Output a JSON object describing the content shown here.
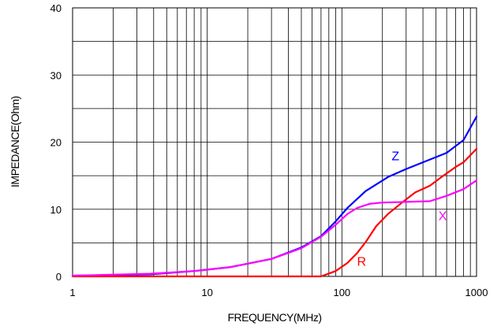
{
  "chart_data": {
    "type": "line",
    "title": "",
    "xlabel": "FREQUENCY(MHz)",
    "ylabel": "IMPEDANCE(Ohm)",
    "xscale": "log",
    "xlim": [
      1,
      1000
    ],
    "ylim": [
      0,
      40
    ],
    "xticks": [
      1,
      10,
      100,
      1000
    ],
    "xtick_labels": [
      "1",
      "10",
      "100",
      "1000"
    ],
    "yticks": [
      0,
      10,
      20,
      30,
      40
    ],
    "ytick_labels": [
      "0",
      "10",
      "20",
      "30",
      "40"
    ],
    "grid": true,
    "legend": "inline labels",
    "series": [
      {
        "name": "Z",
        "color": "#0000ff",
        "label_position": [
          250,
          17.3
        ],
        "x": [
          1,
          3.8,
          8,
          15,
          30,
          50,
          70,
          90,
          110,
          150,
          180,
          220,
          300,
          400,
          600,
          800,
          1000
        ],
        "y": [
          0.1,
          0.3,
          0.8,
          1.4,
          2.6,
          4.3,
          6.0,
          8.2,
          10.2,
          12.7,
          13.7,
          14.8,
          16.0,
          17.0,
          18.4,
          20.3,
          23.8
        ]
      },
      {
        "name": "R",
        "color": "#ff0000",
        "label_position": [
          140,
          1.6
        ],
        "x": [
          1,
          70,
          90,
          110,
          130,
          150,
          180,
          220,
          280,
          350,
          450,
          550,
          700,
          800,
          1000
        ],
        "y": [
          0,
          0,
          0.8,
          2.0,
          3.5,
          5.1,
          7.5,
          9.3,
          11.0,
          12.5,
          13.5,
          14.8,
          16.3,
          17.0,
          19.0
        ]
      },
      {
        "name": "X",
        "color": "#ff00ff",
        "label_position": [
          560,
          8.4
        ],
        "x": [
          1,
          3.8,
          8,
          15,
          30,
          50,
          70,
          90,
          110,
          130,
          160,
          200,
          300,
          450,
          600,
          800,
          1000
        ],
        "y": [
          0.1,
          0.4,
          0.8,
          1.4,
          2.6,
          4.2,
          5.9,
          7.7,
          9.3,
          10.2,
          10.8,
          11.0,
          11.1,
          11.2,
          12.0,
          13.0,
          14.3
        ]
      }
    ]
  }
}
